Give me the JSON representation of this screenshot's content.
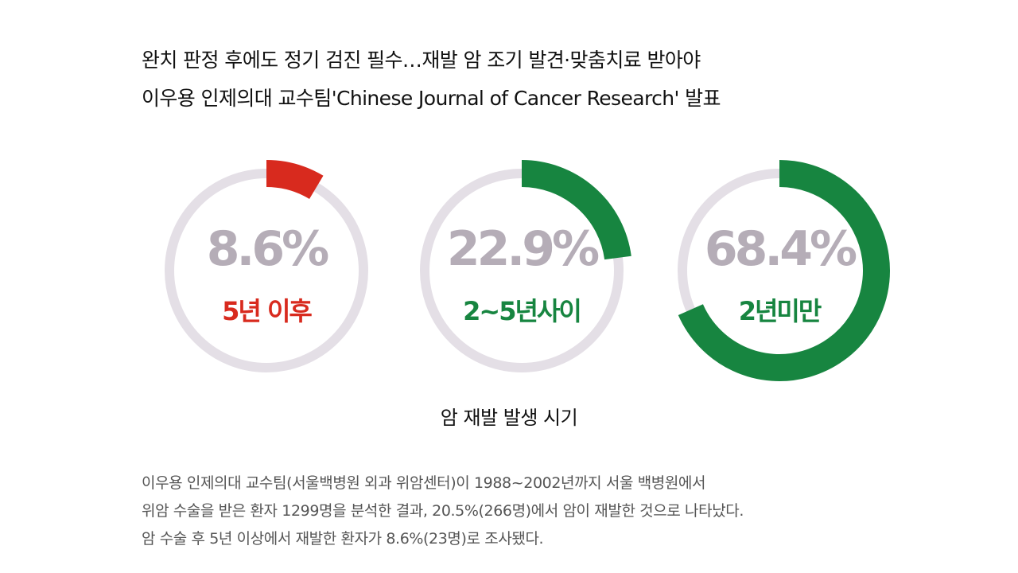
{
  "headline": {
    "line1": "완치 판정 후에도 정기 검진 필수…재발 암 조기 발견·맞춤치료 받아야",
    "line2": "이우용 인제의대 교수팀'Chinese Journal of Cancer Research' 발표"
  },
  "chart_data": {
    "type": "donut",
    "title": "암 재발 발생 시기",
    "unit": "%",
    "categories": [
      "5년 이후",
      "2~5년사이",
      "2년미만"
    ],
    "values": [
      8.6,
      22.9,
      68.4
    ],
    "value_labels": [
      "8.6%",
      "22.9%",
      "68.4%"
    ],
    "colors": [
      "#d82a1e",
      "#178540",
      "#178540"
    ],
    "track_color": "#e4dfe6",
    "value_text_color": "#b5adb7"
  },
  "body": {
    "line1": "이우용 인제의대 교수팀(서울백병원 외과 위암센터)이 1988~2002년까지 서울 백병원에서",
    "line2": "위암 수술을 받은 환자 1299명을 분석한 결과, 20.5%(266명)에서 암이 재발한 것으로 나타났다.",
    "line3": "암 수술 후 5년 이상에서 재발한 환자가 8.6%(23명)로 조사됐다."
  }
}
